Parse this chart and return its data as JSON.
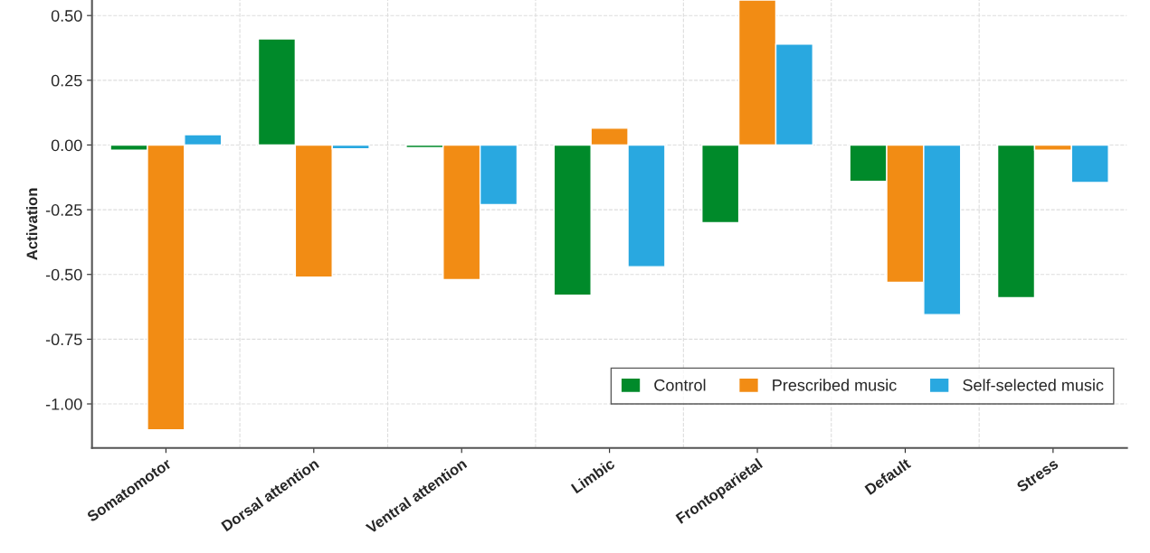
{
  "chart_data": {
    "type": "bar",
    "ylabel": "Activation",
    "categories": [
      "Somatomotor",
      "Dorsal attention",
      "Ventral attention",
      "Limbic",
      "Frontoparietal",
      "Default",
      "Stress"
    ],
    "series": [
      {
        "name": "Control",
        "color": "#008a2a",
        "values": [
          -0.02,
          0.41,
          -0.01,
          -0.58,
          -0.3,
          -0.14,
          -0.59
        ]
      },
      {
        "name": "Prescribed music",
        "color": "#f28c14",
        "values": [
          -1.1,
          -0.51,
          -0.52,
          0.065,
          0.56,
          -0.53,
          -0.02
        ]
      },
      {
        "name": "Self-selected music",
        "color": "#29a8e0",
        "values": [
          0.04,
          -0.015,
          -0.23,
          -0.47,
          0.39,
          -0.655,
          -0.145
        ]
      }
    ],
    "ylim": [
      -1.17,
      0.56
    ],
    "yticks": [
      {
        "value": 0.5,
        "label": "0.50"
      },
      {
        "value": 0.25,
        "label": "0.25"
      },
      {
        "value": 0,
        "label": "0.00"
      },
      {
        "value": -0.25,
        "label": "-0.25"
      },
      {
        "value": -0.5,
        "label": "-0.50"
      },
      {
        "value": -0.75,
        "label": "-0.75"
      },
      {
        "value": -1.0,
        "label": "-1.00"
      }
    ],
    "grid": true,
    "legend": "bottom right"
  }
}
